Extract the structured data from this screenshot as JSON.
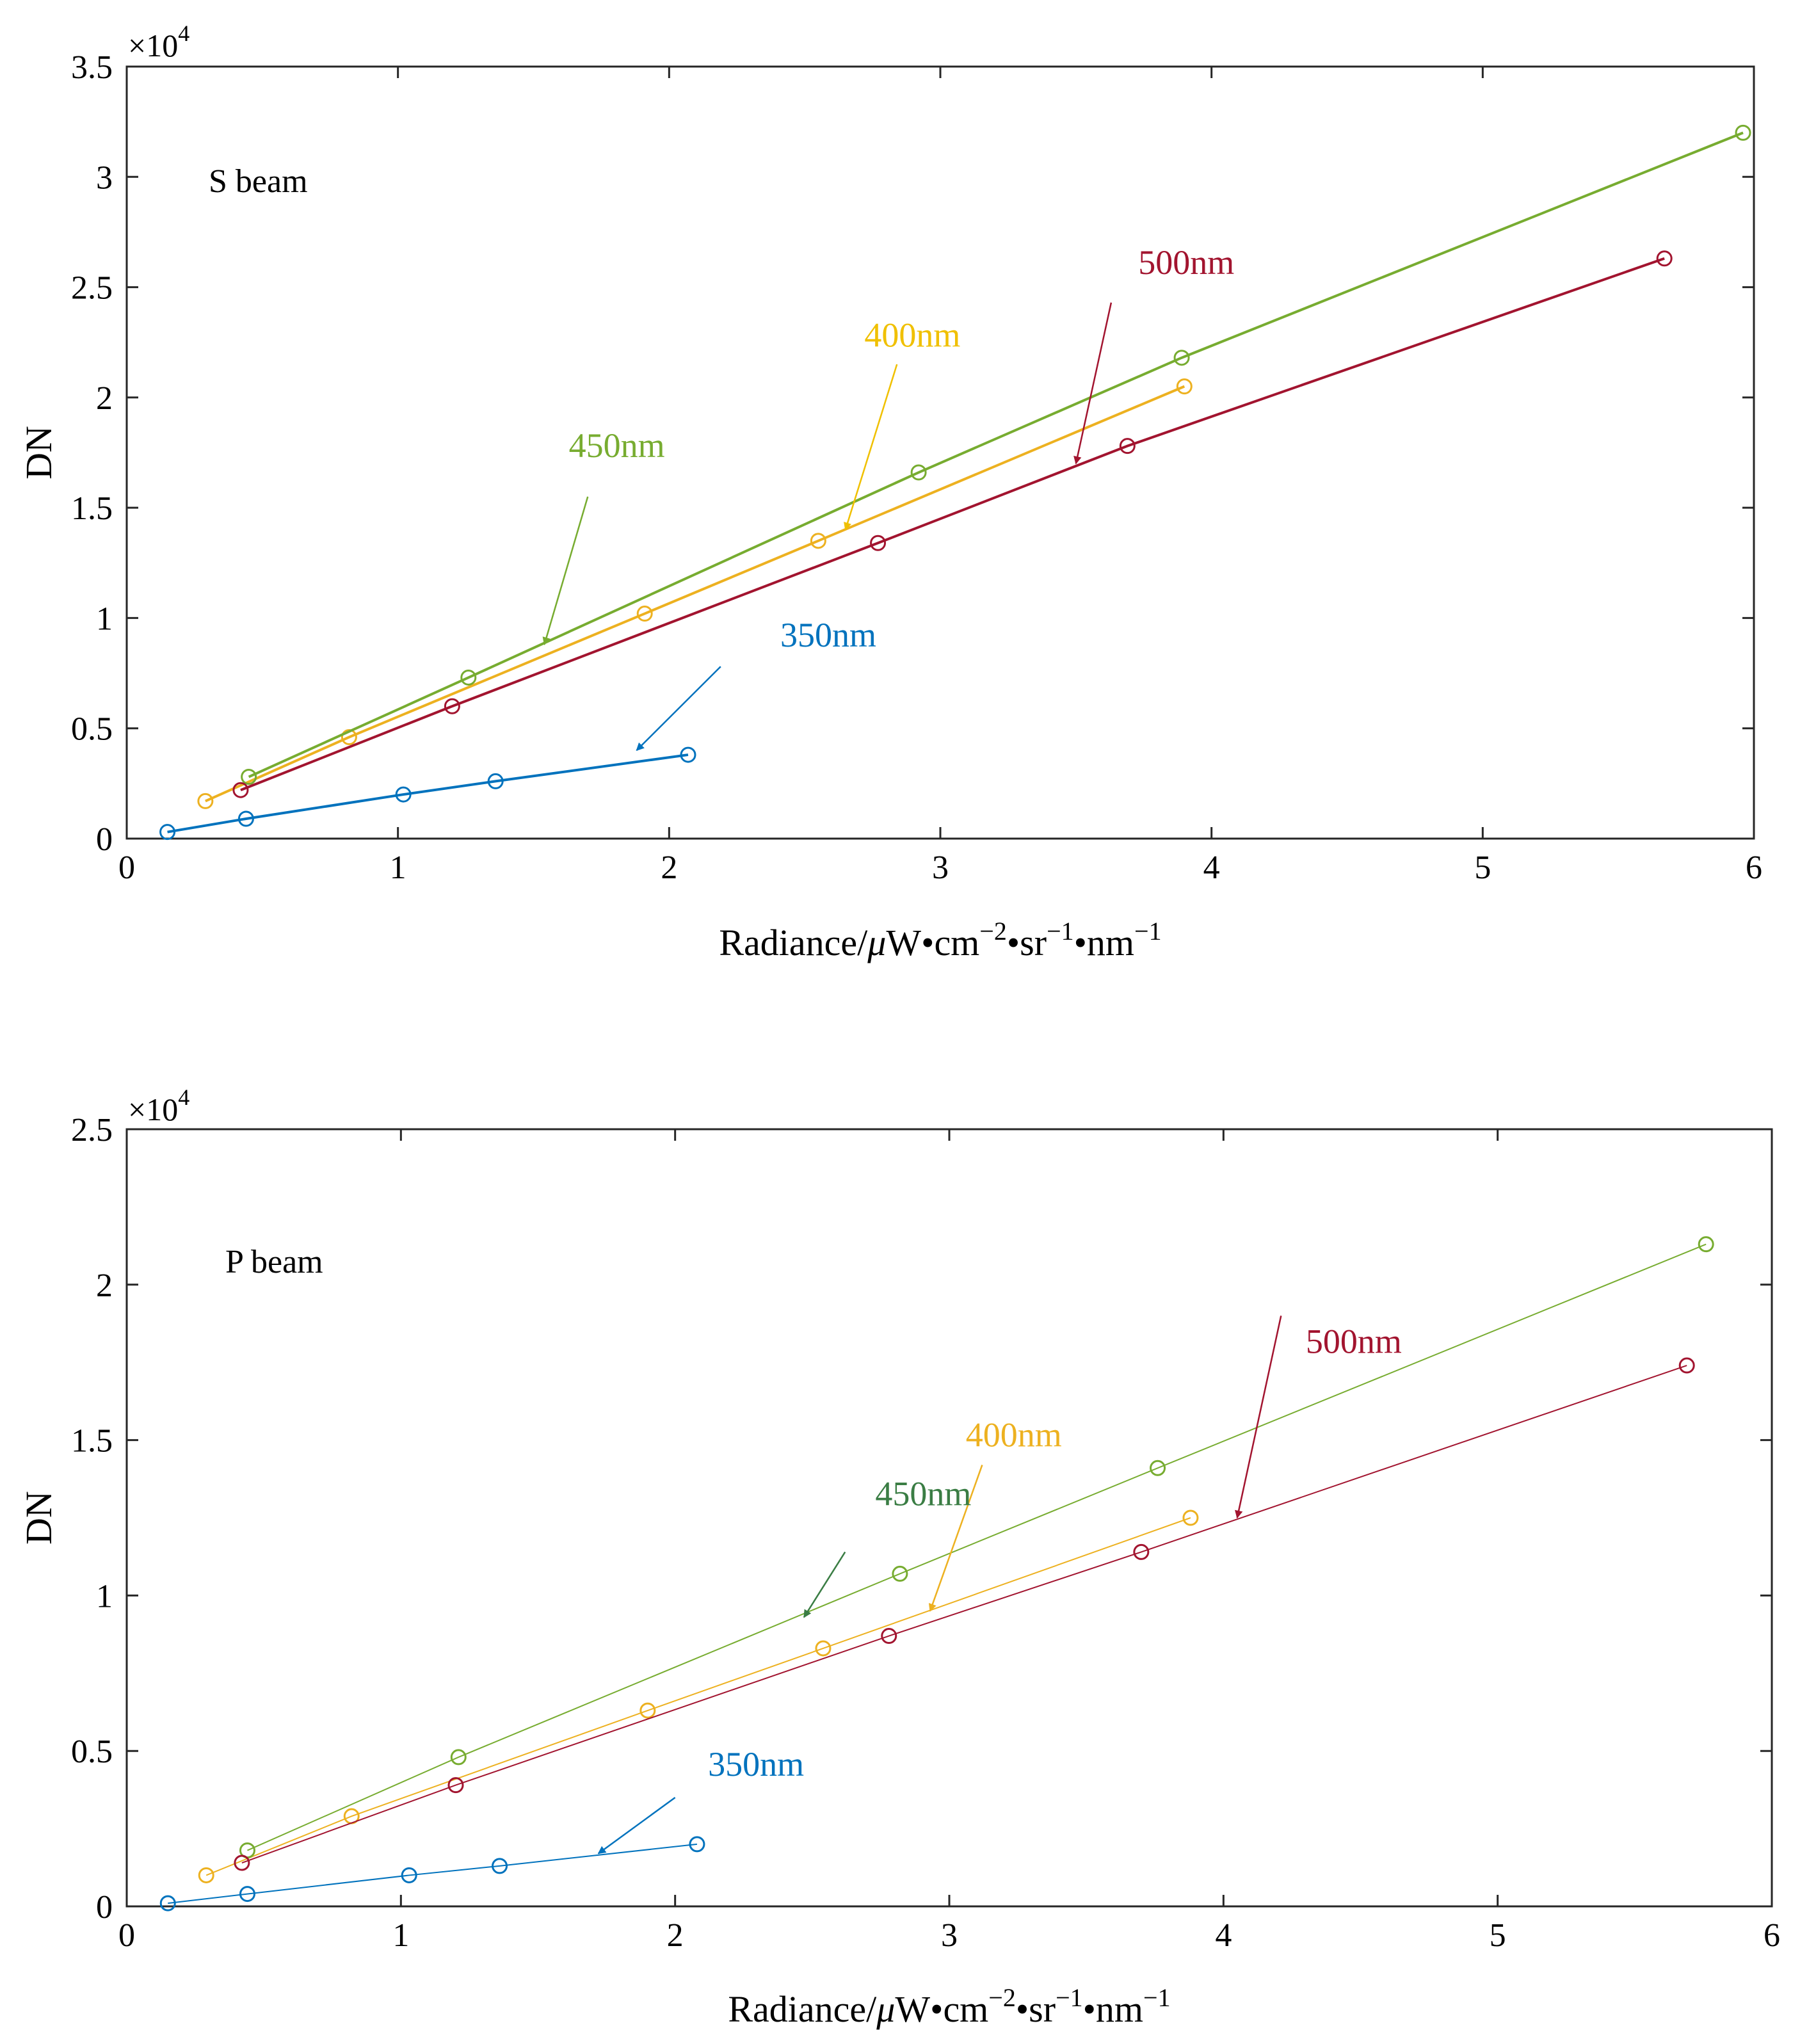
{
  "chart_data": [
    {
      "type": "scatter",
      "panel_label": "S beam",
      "xlabel": {
        "base": "Radiance/",
        "mu": "μ",
        "unit_w": "W•cm",
        "exp_cm": "−2",
        "unit_sr": "•sr",
        "exp_sr": "−1",
        "unit_nm": "•nm",
        "exp_nm": "−1"
      },
      "ylabel": "DN",
      "y_exponent": {
        "base": "×10",
        "power": "4"
      },
      "xlim": [
        0,
        6
      ],
      "ylim": [
        0,
        3.5
      ],
      "xticks": [
        "0",
        "1",
        "2",
        "3",
        "4",
        "5",
        "6"
      ],
      "yticks": [
        "0",
        "0.5",
        "1",
        "1.5",
        "2",
        "2.5",
        "3",
        "3.5"
      ],
      "grid": false,
      "series": [
        {
          "name": "350nm",
          "color": "#0072bd",
          "label_color": "#0072bd",
          "x": [
            0.15,
            0.44,
            1.02,
            1.36,
            2.07
          ],
          "y": [
            0.03,
            0.09,
            0.2,
            0.26,
            0.38
          ],
          "arrow_tail": [
            2.19,
            0.78
          ],
          "arrow_head": [
            1.88,
            0.4
          ],
          "label_pos": [
            2.41,
            0.87
          ]
        },
        {
          "name": "400nm",
          "color": "#edb120",
          "label_color": "#f0c000",
          "x": [
            0.29,
            0.82,
            1.91,
            2.55,
            3.9
          ],
          "y": [
            0.17,
            0.46,
            1.02,
            1.35,
            2.05
          ],
          "arrow_tail": [
            2.84,
            2.15
          ],
          "arrow_head": [
            2.65,
            1.4
          ],
          "label_pos": [
            2.72,
            2.23
          ]
        },
        {
          "name": "450nm",
          "color": "#77ac30",
          "label_color": "#77ac30",
          "x": [
            0.45,
            1.26,
            2.92,
            3.89,
            5.96
          ],
          "y": [
            0.28,
            0.73,
            1.66,
            2.18,
            3.2
          ],
          "arrow_tail": [
            1.7,
            1.55
          ],
          "arrow_head": [
            1.54,
            0.88
          ],
          "label_pos": [
            1.63,
            1.73
          ]
        },
        {
          "name": "500nm",
          "color": "#a2142f",
          "label_color": "#a2142f",
          "x": [
            0.42,
            1.2,
            2.77,
            3.69,
            5.67
          ],
          "y": [
            0.22,
            0.6,
            1.34,
            1.78,
            2.63
          ],
          "arrow_tail": [
            3.63,
            2.43
          ],
          "arrow_head": [
            3.5,
            1.7
          ],
          "label_pos": [
            3.73,
            2.56
          ]
        }
      ]
    },
    {
      "type": "scatter",
      "panel_label": "P beam",
      "xlabel": {
        "base": "Radiance/",
        "mu": "μ",
        "unit_w": "W•cm",
        "exp_cm": "−2",
        "unit_sr": "•sr",
        "exp_sr": "−1",
        "unit_nm": "•nm",
        "exp_nm": "−1"
      },
      "ylabel": "DN",
      "y_exponent": {
        "base": "×10",
        "power": "4"
      },
      "xlim": [
        0,
        6
      ],
      "ylim": [
        0,
        2.5
      ],
      "xticks": [
        "0",
        "1",
        "2",
        "3",
        "4",
        "5",
        "6"
      ],
      "yticks": [
        "0",
        "0.5",
        "1",
        "1.5",
        "2",
        "2.5"
      ],
      "grid": false,
      "series": [
        {
          "name": "350nm",
          "color": "#0072bd",
          "label_color": "#0072bd",
          "x": [
            0.15,
            0.44,
            1.03,
            1.36,
            2.08
          ],
          "y": [
            0.01,
            0.04,
            0.1,
            0.13,
            0.2
          ],
          "arrow_tail": [
            2.0,
            0.35
          ],
          "arrow_head": [
            1.72,
            0.17
          ],
          "label_pos": [
            2.12,
            0.42
          ]
        },
        {
          "name": "400nm",
          "color": "#edb120",
          "label_color": "#edb120",
          "x": [
            0.29,
            0.82,
            1.9,
            2.54,
            3.88
          ],
          "y": [
            0.1,
            0.29,
            0.63,
            0.83,
            1.25
          ],
          "arrow_tail": [
            3.12,
            1.42
          ],
          "arrow_head": [
            2.93,
            0.95
          ],
          "label_pos": [
            3.06,
            1.48
          ]
        },
        {
          "name": "450nm",
          "color": "#77ac30",
          "label_color": "#3a7d44",
          "x": [
            0.44,
            1.21,
            2.82,
            3.76,
            5.76
          ],
          "y": [
            0.18,
            0.48,
            1.07,
            1.41,
            2.13
          ],
          "arrow_tail": [
            2.62,
            1.14
          ],
          "arrow_head": [
            2.47,
            0.93
          ],
          "label_pos": [
            2.73,
            1.29
          ]
        },
        {
          "name": "500nm",
          "color": "#a2142f",
          "label_color": "#a2142f",
          "x": [
            0.42,
            1.2,
            2.78,
            3.7,
            5.69
          ],
          "y": [
            0.14,
            0.39,
            0.87,
            1.14,
            1.74
          ],
          "arrow_tail": [
            4.21,
            1.9
          ],
          "arrow_head": [
            4.05,
            1.25
          ],
          "label_pos": [
            4.3,
            1.78
          ]
        }
      ]
    }
  ]
}
